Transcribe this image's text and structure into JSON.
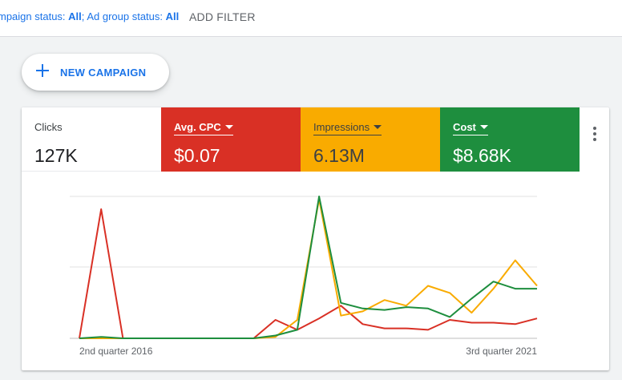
{
  "filter_bar": {
    "campaign_status_label": "mpaign status:",
    "campaign_status_value": "All",
    "separator": ";",
    "ad_group_status_label": "Ad group status:",
    "ad_group_status_value": "All",
    "add_filter_label": "ADD FILTER"
  },
  "new_campaign": {
    "label": "NEW CAMPAIGN",
    "icon": "plus-icon"
  },
  "metrics": {
    "clicks": {
      "label": "Clicks",
      "value": "127K"
    },
    "avg_cpc": {
      "label": "Avg. CPC",
      "value": "$0.07",
      "color": "#d93025"
    },
    "impressions": {
      "label": "Impressions",
      "value": "6.13M",
      "color": "#f9ab00"
    },
    "cost": {
      "label": "Cost",
      "value": "$8.68K",
      "color": "#1e8e3e"
    }
  },
  "more_menu": {
    "icon": "more-vert-icon"
  },
  "chart_data": {
    "type": "line",
    "x_start_label": "2nd quarter 2016",
    "x_end_label": "3rd quarter 2021",
    "grid": true,
    "ylim": [
      0,
      100
    ],
    "series": [
      {
        "name": "Avg. CPC",
        "color": "#d93025",
        "values": [
          0,
          91,
          0,
          0,
          0,
          0,
          0,
          0,
          0,
          13,
          6,
          14,
          23,
          10,
          7,
          7,
          6,
          13,
          11,
          11,
          10,
          14
        ]
      },
      {
        "name": "Impressions",
        "color": "#f9ab00",
        "values": [
          0,
          0,
          0,
          0,
          0,
          0,
          0,
          0,
          0,
          1,
          13,
          98,
          16,
          19,
          27,
          23,
          37,
          32,
          18,
          35,
          55,
          37
        ]
      },
      {
        "name": "Cost",
        "color": "#1e8e3e",
        "values": [
          0,
          1,
          0,
          0,
          0,
          0,
          0,
          0,
          0,
          2,
          6,
          100,
          25,
          21,
          20,
          22,
          21,
          15,
          28,
          40,
          35,
          35
        ]
      }
    ]
  }
}
